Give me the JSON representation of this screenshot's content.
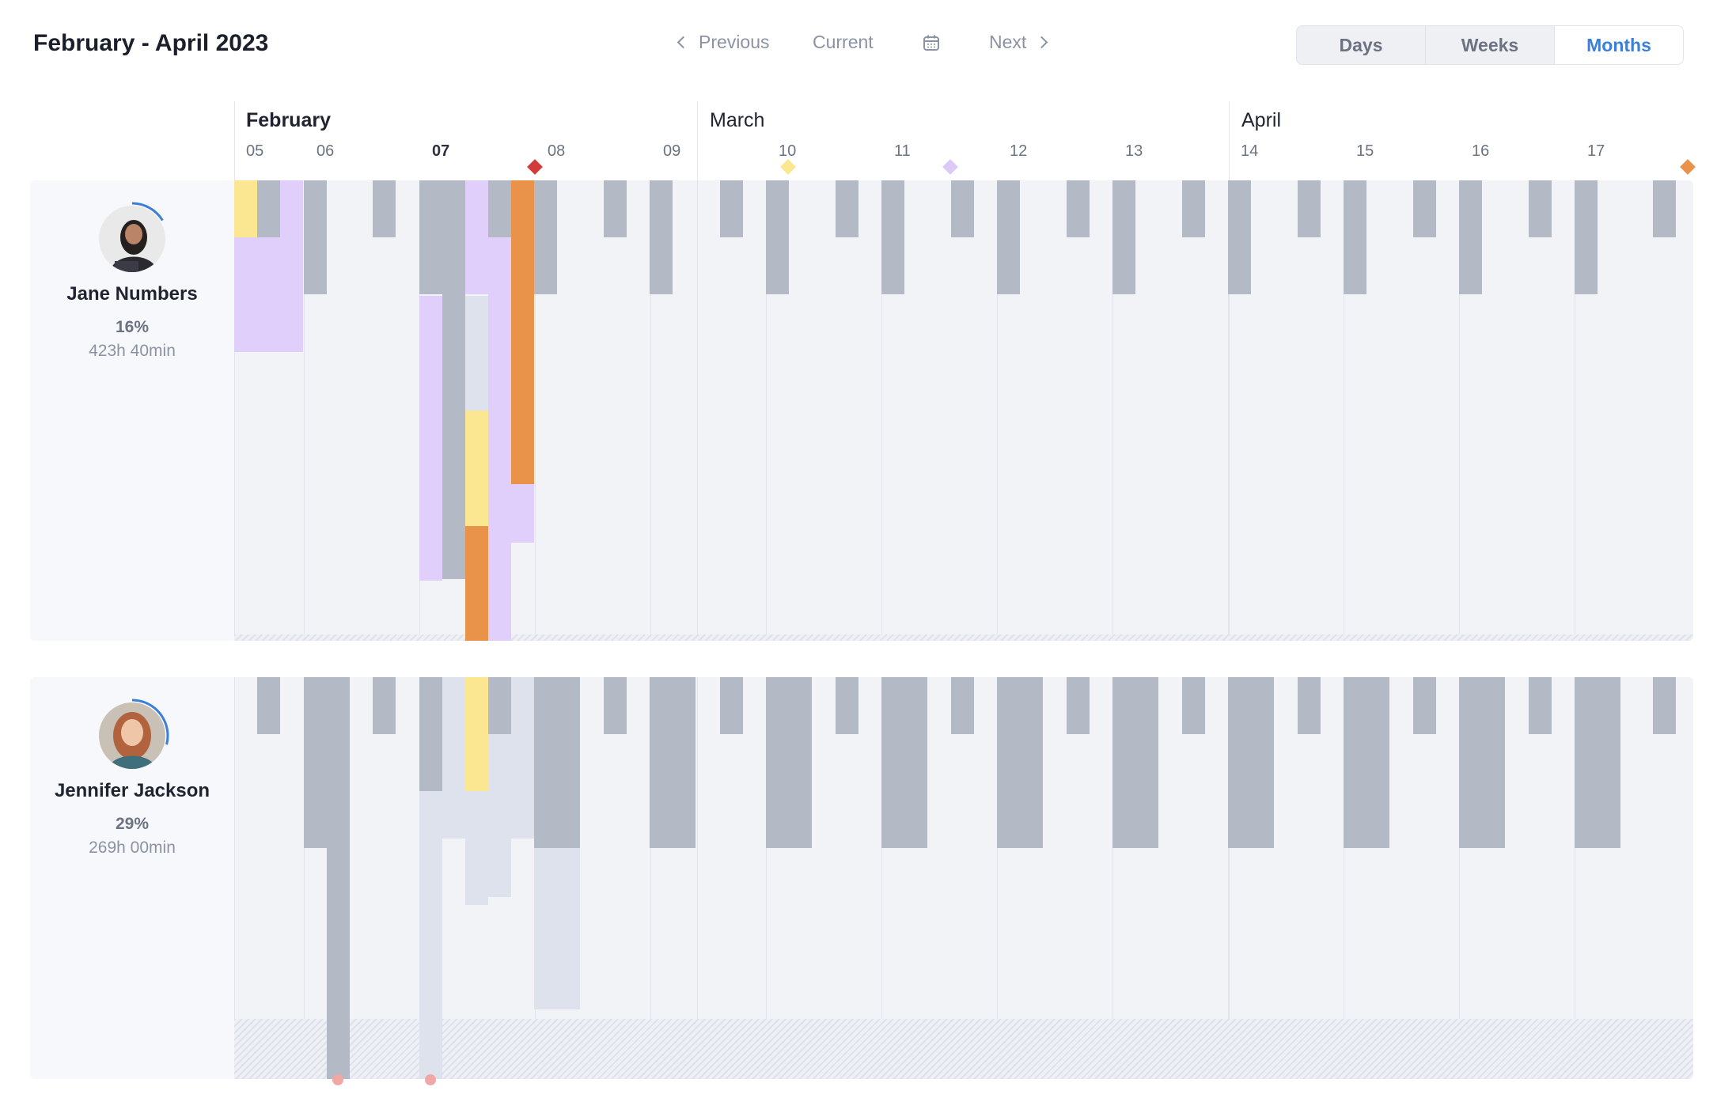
{
  "header": {
    "title": "February - April 2023",
    "nav": {
      "previous": "Previous",
      "current": "Current",
      "next": "Next"
    },
    "view_modes": [
      "Days",
      "Weeks",
      "Months"
    ],
    "active_view": "Months"
  },
  "timeline": {
    "months": [
      {
        "label": "February",
        "bold": true
      },
      {
        "label": "March",
        "bold": false
      },
      {
        "label": "April",
        "bold": false
      }
    ],
    "weeks": [
      "05",
      "06",
      "07",
      "08",
      "09",
      "10",
      "11",
      "12",
      "13",
      "14",
      "15",
      "16",
      "17"
    ],
    "current_week": "07",
    "milestones": [
      {
        "color": "#d23b3b"
      },
      {
        "color": "#fbe790"
      },
      {
        "color": "#dcc9f7"
      },
      {
        "color": "#e8924a"
      }
    ]
  },
  "people": [
    {
      "name": "Jane Numbers",
      "percent": "16%",
      "hours": "423h 40min"
    },
    {
      "name": "Jennifer Jackson",
      "percent": "29%",
      "hours": "269h 00min"
    }
  ],
  "colors": {
    "gray": "#b3b9c5",
    "light": "#dde2ed",
    "lavender": "#dfcffa",
    "yellow": "#fbe792",
    "orange": "#e8924a",
    "accent": "#3b7fd8"
  }
}
